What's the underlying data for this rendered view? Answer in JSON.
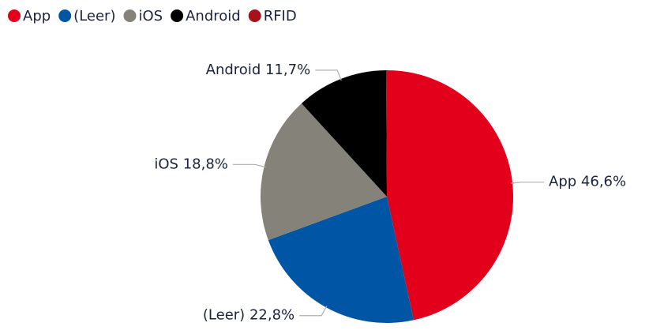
{
  "chart_data": {
    "type": "pie",
    "categories": [
      "App",
      "(Leer)",
      "iOS",
      "Android",
      "RFID"
    ],
    "values": [
      46.6,
      22.8,
      18.8,
      11.7,
      0.1
    ],
    "value_labels": [
      "46,6%",
      "22,8%",
      "18,8%",
      "11,7%",
      null
    ],
    "colors": [
      "#e2001a",
      "#0055a5",
      "#858279",
      "#000000",
      "#a8101c"
    ],
    "legend": "top-left"
  }
}
